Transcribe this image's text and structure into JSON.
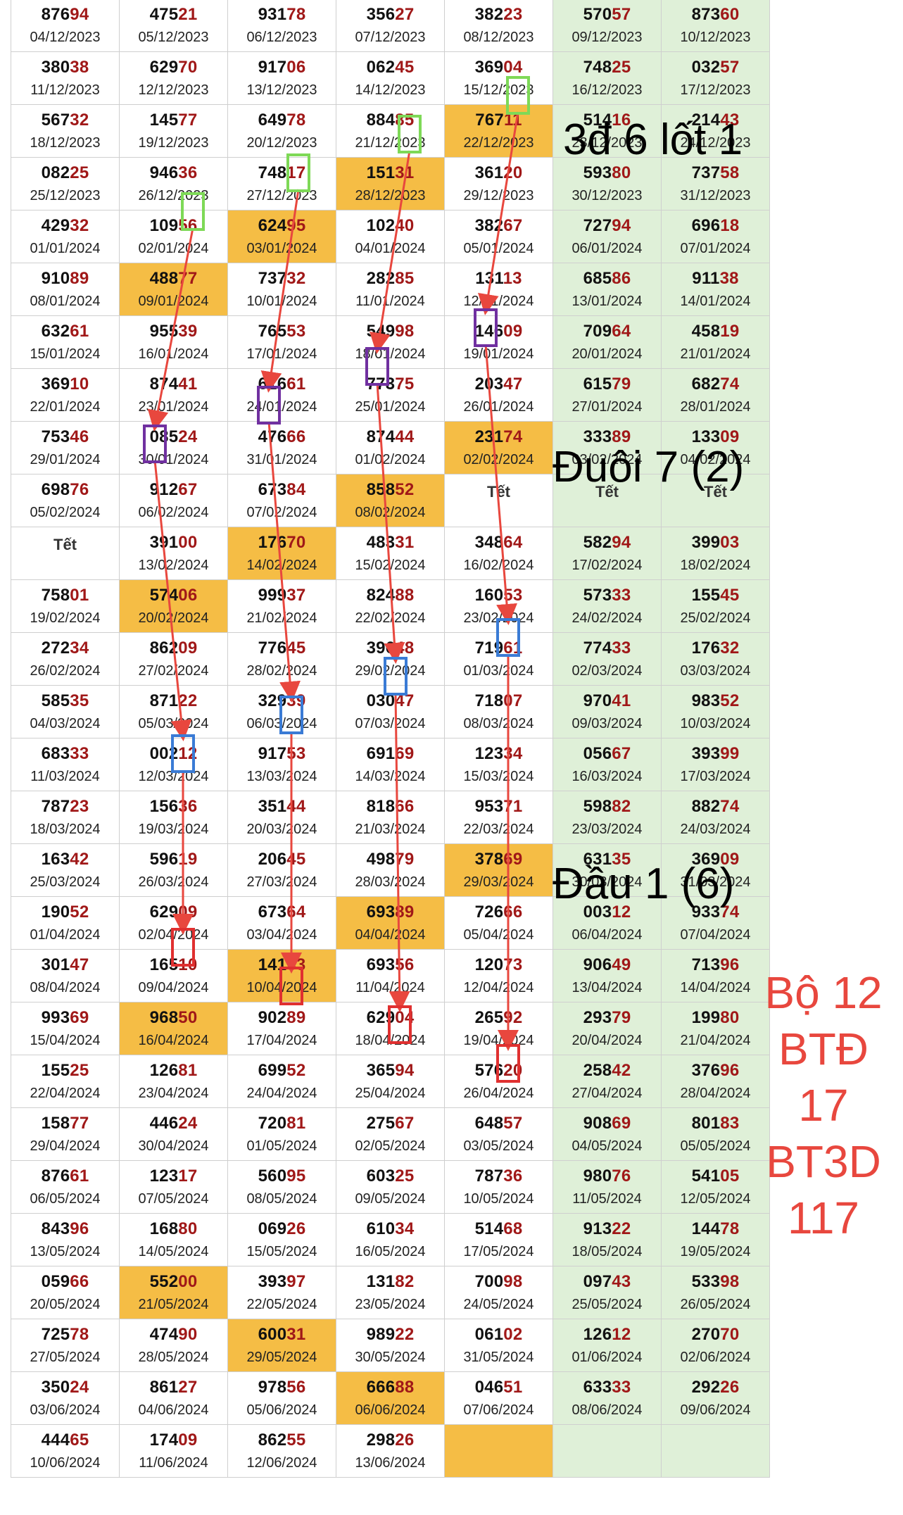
{
  "colors": {
    "highlight": "#f5bd45",
    "weekend": "#dff0d8",
    "tail_digits": "#a01818",
    "arrow": "#e8473e",
    "box_green": "#7ed957",
    "box_purple": "#7030a0",
    "box_blue": "#3a7bd5",
    "box_red": "#e03030"
  },
  "tet_label": "Tết",
  "rows": [
    [
      [
        "87694",
        "04/12/2023"
      ],
      [
        "47521",
        "05/12/2023"
      ],
      [
        "93178",
        "06/12/2023"
      ],
      [
        "35627",
        "07/12/2023"
      ],
      [
        "38223",
        "08/12/2023"
      ],
      [
        "57057",
        "09/12/2023"
      ],
      [
        "87360",
        "10/12/2023"
      ]
    ],
    [
      [
        "38038",
        "11/12/2023"
      ],
      [
        "62970",
        "12/12/2023"
      ],
      [
        "91706",
        "13/12/2023"
      ],
      [
        "06245",
        "14/12/2023"
      ],
      [
        "36904",
        "15/12/2023"
      ],
      [
        "74825",
        "16/12/2023"
      ],
      [
        "03257",
        "17/12/2023"
      ]
    ],
    [
      [
        "56732",
        "18/12/2023"
      ],
      [
        "14577",
        "19/12/2023"
      ],
      [
        "64978",
        "20/12/2023"
      ],
      [
        "88485",
        "21/12/2023"
      ],
      [
        "76711",
        "22/12/2023"
      ],
      [
        "51416",
        "23/12/2023"
      ],
      [
        "21443",
        "24/12/2023"
      ]
    ],
    [
      [
        "08225",
        "25/12/2023"
      ],
      [
        "94636",
        "26/12/2023"
      ],
      [
        "74817",
        "27/12/2023"
      ],
      [
        "15131",
        "28/12/2023"
      ],
      [
        "36120",
        "29/12/2023"
      ],
      [
        "59380",
        "30/12/2023"
      ],
      [
        "73758",
        "31/12/2023"
      ]
    ],
    [
      [
        "42932",
        "01/01/2024"
      ],
      [
        "10956",
        "02/01/2024"
      ],
      [
        "62495",
        "03/01/2024"
      ],
      [
        "10240",
        "04/01/2024"
      ],
      [
        "38267",
        "05/01/2024"
      ],
      [
        "72794",
        "06/01/2024"
      ],
      [
        "69618",
        "07/01/2024"
      ]
    ],
    [
      [
        "91089",
        "08/01/2024"
      ],
      [
        "48877",
        "09/01/2024"
      ],
      [
        "73732",
        "10/01/2024"
      ],
      [
        "28285",
        "11/01/2024"
      ],
      [
        "13113",
        "12/01/2024"
      ],
      [
        "68586",
        "13/01/2024"
      ],
      [
        "91138",
        "14/01/2024"
      ]
    ],
    [
      [
        "63261",
        "15/01/2024"
      ],
      [
        "95539",
        "16/01/2024"
      ],
      [
        "76553",
        "17/01/2024"
      ],
      [
        "54998",
        "18/01/2024"
      ],
      [
        "14609",
        "19/01/2024"
      ],
      [
        "70964",
        "20/01/2024"
      ],
      [
        "45819",
        "21/01/2024"
      ]
    ],
    [
      [
        "36910",
        "22/01/2024"
      ],
      [
        "87441",
        "23/01/2024"
      ],
      [
        "61661",
        "24/01/2024"
      ],
      [
        "77375",
        "25/01/2024"
      ],
      [
        "20347",
        "26/01/2024"
      ],
      [
        "61579",
        "27/01/2024"
      ],
      [
        "68274",
        "28/01/2024"
      ]
    ],
    [
      [
        "75346",
        "29/01/2024"
      ],
      [
        "08524",
        "30/01/2024"
      ],
      [
        "47666",
        "31/01/2024"
      ],
      [
        "87444",
        "01/02/2024"
      ],
      [
        "23174",
        "02/02/2024"
      ],
      [
        "33389",
        "03/02/2024"
      ],
      [
        "13309",
        "04/02/2024"
      ]
    ],
    [
      [
        "69876",
        "05/02/2024"
      ],
      [
        "91267",
        "06/02/2024"
      ],
      [
        "67384",
        "07/02/2024"
      ],
      [
        "85852",
        "08/02/2024"
      ],
      [
        "",
        ""
      ],
      [
        "",
        ""
      ],
      [
        "",
        ""
      ]
    ],
    [
      [
        "",
        ""
      ],
      [
        "39100",
        "13/02/2024"
      ],
      [
        "17670",
        "14/02/2024"
      ],
      [
        "48331",
        "15/02/2024"
      ],
      [
        "34864",
        "16/02/2024"
      ],
      [
        "58294",
        "17/02/2024"
      ],
      [
        "39903",
        "18/02/2024"
      ]
    ],
    [
      [
        "75801",
        "19/02/2024"
      ],
      [
        "57406",
        "20/02/2024"
      ],
      [
        "99937",
        "21/02/2024"
      ],
      [
        "82488",
        "22/02/2024"
      ],
      [
        "16053",
        "23/02/2024"
      ],
      [
        "57333",
        "24/02/2024"
      ],
      [
        "15545",
        "25/02/2024"
      ]
    ],
    [
      [
        "27234",
        "26/02/2024"
      ],
      [
        "86209",
        "27/02/2024"
      ],
      [
        "77645",
        "28/02/2024"
      ],
      [
        "39648",
        "29/02/2024"
      ],
      [
        "71961",
        "01/03/2024"
      ],
      [
        "77433",
        "02/03/2024"
      ],
      [
        "17632",
        "03/03/2024"
      ]
    ],
    [
      [
        "58535",
        "04/03/2024"
      ],
      [
        "87122",
        "05/03/2024"
      ],
      [
        "32939",
        "06/03/2024"
      ],
      [
        "03047",
        "07/03/2024"
      ],
      [
        "71807",
        "08/03/2024"
      ],
      [
        "97041",
        "09/03/2024"
      ],
      [
        "98352",
        "10/03/2024"
      ]
    ],
    [
      [
        "68333",
        "11/03/2024"
      ],
      [
        "00212",
        "12/03/2024"
      ],
      [
        "91753",
        "13/03/2024"
      ],
      [
        "69169",
        "14/03/2024"
      ],
      [
        "12334",
        "15/03/2024"
      ],
      [
        "05667",
        "16/03/2024"
      ],
      [
        "39399",
        "17/03/2024"
      ]
    ],
    [
      [
        "78723",
        "18/03/2024"
      ],
      [
        "15636",
        "19/03/2024"
      ],
      [
        "35144",
        "20/03/2024"
      ],
      [
        "81866",
        "21/03/2024"
      ],
      [
        "95371",
        "22/03/2024"
      ],
      [
        "59882",
        "23/03/2024"
      ],
      [
        "88274",
        "24/03/2024"
      ]
    ],
    [
      [
        "16342",
        "25/03/2024"
      ],
      [
        "59619",
        "26/03/2024"
      ],
      [
        "20645",
        "27/03/2024"
      ],
      [
        "49879",
        "28/03/2024"
      ],
      [
        "37869",
        "29/03/2024"
      ],
      [
        "63135",
        "30/03/2024"
      ],
      [
        "36909",
        "31/03/2024"
      ]
    ],
    [
      [
        "19052",
        "01/04/2024"
      ],
      [
        "62909",
        "02/04/2024"
      ],
      [
        "67364",
        "03/04/2024"
      ],
      [
        "69389",
        "04/04/2024"
      ],
      [
        "72666",
        "05/04/2024"
      ],
      [
        "00312",
        "06/04/2024"
      ],
      [
        "93374",
        "07/04/2024"
      ]
    ],
    [
      [
        "30147",
        "08/04/2024"
      ],
      [
        "16510",
        "09/04/2024"
      ],
      [
        "14133",
        "10/04/2024"
      ],
      [
        "69356",
        "11/04/2024"
      ],
      [
        "12073",
        "12/04/2024"
      ],
      [
        "90649",
        "13/04/2024"
      ],
      [
        "71396",
        "14/04/2024"
      ]
    ],
    [
      [
        "99369",
        "15/04/2024"
      ],
      [
        "96850",
        "16/04/2024"
      ],
      [
        "90289",
        "17/04/2024"
      ],
      [
        "62904",
        "18/04/2024"
      ],
      [
        "26592",
        "19/04/2024"
      ],
      [
        "29379",
        "20/04/2024"
      ],
      [
        "19980",
        "21/04/2024"
      ]
    ],
    [
      [
        "15525",
        "22/04/2024"
      ],
      [
        "12681",
        "23/04/2024"
      ],
      [
        "69952",
        "24/04/2024"
      ],
      [
        "36594",
        "25/04/2024"
      ],
      [
        "57620",
        "26/04/2024"
      ],
      [
        "25842",
        "27/04/2024"
      ],
      [
        "37696",
        "28/04/2024"
      ]
    ],
    [
      [
        "15877",
        "29/04/2024"
      ],
      [
        "44624",
        "30/04/2024"
      ],
      [
        "72081",
        "01/05/2024"
      ],
      [
        "27567",
        "02/05/2024"
      ],
      [
        "64857",
        "03/05/2024"
      ],
      [
        "90869",
        "04/05/2024"
      ],
      [
        "80183",
        "05/05/2024"
      ]
    ],
    [
      [
        "87661",
        "06/05/2024"
      ],
      [
        "12317",
        "07/05/2024"
      ],
      [
        "56095",
        "08/05/2024"
      ],
      [
        "60325",
        "09/05/2024"
      ],
      [
        "78736",
        "10/05/2024"
      ],
      [
        "98076",
        "11/05/2024"
      ],
      [
        "54105",
        "12/05/2024"
      ]
    ],
    [
      [
        "84396",
        "13/05/2024"
      ],
      [
        "16880",
        "14/05/2024"
      ],
      [
        "06926",
        "15/05/2024"
      ],
      [
        "61034",
        "16/05/2024"
      ],
      [
        "51468",
        "17/05/2024"
      ],
      [
        "91322",
        "18/05/2024"
      ],
      [
        "14478",
        "19/05/2024"
      ]
    ],
    [
      [
        "05966",
        "20/05/2024"
      ],
      [
        "55200",
        "21/05/2024"
      ],
      [
        "39397",
        "22/05/2024"
      ],
      [
        "13182",
        "23/05/2024"
      ],
      [
        "70098",
        "24/05/2024"
      ],
      [
        "09743",
        "25/05/2024"
      ],
      [
        "53398",
        "26/05/2024"
      ]
    ],
    [
      [
        "72578",
        "27/05/2024"
      ],
      [
        "47490",
        "28/05/2024"
      ],
      [
        "60031",
        "29/05/2024"
      ],
      [
        "98922",
        "30/05/2024"
      ],
      [
        "06102",
        "31/05/2024"
      ],
      [
        "12612",
        "01/06/2024"
      ],
      [
        "27070",
        "02/06/2024"
      ]
    ],
    [
      [
        "35024",
        "03/06/2024"
      ],
      [
        "86127",
        "04/06/2024"
      ],
      [
        "97856",
        "05/06/2024"
      ],
      [
        "66688",
        "06/06/2024"
      ],
      [
        "04651",
        "07/06/2024"
      ],
      [
        "63333",
        "08/06/2024"
      ],
      [
        "29226",
        "09/06/2024"
      ]
    ],
    [
      [
        "44465",
        "10/06/2024"
      ],
      [
        "17409",
        "11/06/2024"
      ],
      [
        "86255",
        "12/06/2024"
      ],
      [
        "29826",
        "13/06/2024"
      ],
      [
        "",
        ""
      ],
      [
        "",
        ""
      ],
      [
        "",
        ""
      ]
    ]
  ],
  "tet_cells": [
    [
      9,
      4
    ],
    [
      9,
      5
    ],
    [
      9,
      6
    ],
    [
      10,
      0
    ]
  ],
  "highlight_cells": [
    [
      2,
      4
    ],
    [
      3,
      3
    ],
    [
      4,
      2
    ],
    [
      5,
      1
    ],
    [
      8,
      4
    ],
    [
      9,
      3
    ],
    [
      10,
      2
    ],
    [
      11,
      1
    ],
    [
      16,
      4
    ],
    [
      17,
      3
    ],
    [
      18,
      2
    ],
    [
      19,
      1
    ],
    [
      24,
      1
    ],
    [
      25,
      2
    ],
    [
      26,
      3
    ],
    [
      27,
      4
    ]
  ],
  "annotations": {
    "a1": "3đ 6 lốt 1",
    "a2": "Đuôi 7 (2)",
    "a3": "Đầu 1 (6)",
    "a4": [
      "Bộ 12",
      "BTĐ",
      "17",
      "BT3D",
      "117"
    ]
  }
}
